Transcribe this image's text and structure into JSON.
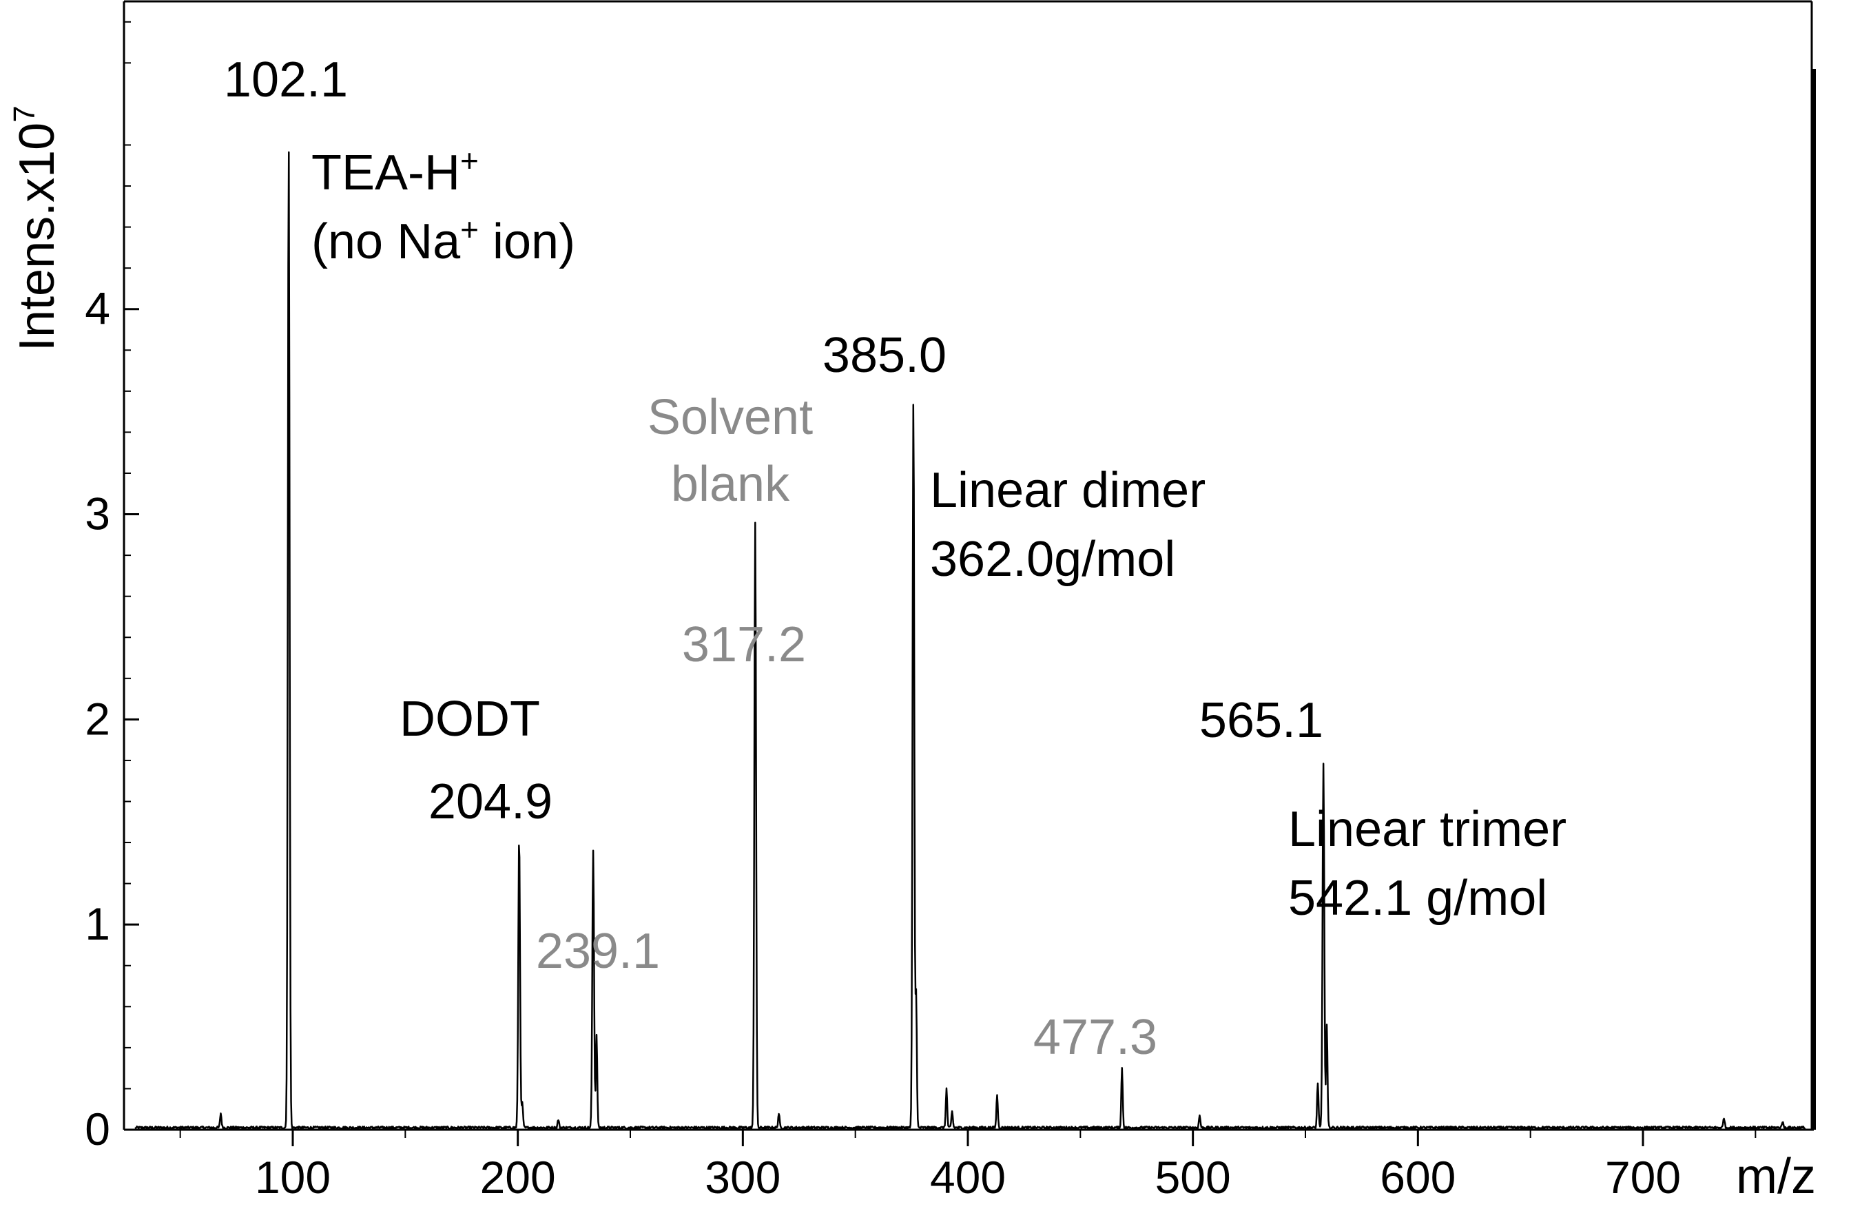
{
  "chart_data": {
    "type": "line",
    "title": "",
    "xlabel": "m/z",
    "ylabel": "Intens.x10",
    "ylabel_exponent": "7",
    "xlim": [
      25,
      775
    ],
    "ylim": [
      0,
      5.5
    ],
    "x_ticks": [
      "100",
      "200",
      "300",
      "400",
      "500",
      "600",
      "700"
    ],
    "y_ticks": [
      "0",
      "1",
      "2",
      "3",
      "4"
    ],
    "grid": false,
    "colors": {
      "series": "#000000",
      "annotation": "#000000",
      "annotation_muted": "#8a8a8a"
    },
    "peaks": [
      {
        "mz": 68,
        "intensity": 0.07
      },
      {
        "mz": 98.2,
        "intensity": 4.8
      },
      {
        "mz": 200.6,
        "intensity": 1.42
      },
      {
        "mz": 202,
        "intensity": 0.12
      },
      {
        "mz": 218,
        "intensity": 0.04
      },
      {
        "mz": 233.5,
        "intensity": 1.35
      },
      {
        "mz": 235,
        "intensity": 0.45
      },
      {
        "mz": 305.5,
        "intensity": 2.95
      },
      {
        "mz": 316,
        "intensity": 0.07
      },
      {
        "mz": 375.8,
        "intensity": 3.55
      },
      {
        "mz": 377,
        "intensity": 0.65
      },
      {
        "mz": 390.5,
        "intensity": 0.19
      },
      {
        "mz": 393,
        "intensity": 0.08
      },
      {
        "mz": 413,
        "intensity": 0.16
      },
      {
        "mz": 468.5,
        "intensity": 0.29
      },
      {
        "mz": 503,
        "intensity": 0.06
      },
      {
        "mz": 555.5,
        "intensity": 0.22
      },
      {
        "mz": 558,
        "intensity": 1.78
      },
      {
        "mz": 559.5,
        "intensity": 0.5
      },
      {
        "mz": 736,
        "intensity": 0.05
      },
      {
        "mz": 762,
        "intensity": 0.03
      }
    ],
    "annotations": [
      {
        "mz": 102.1,
        "label": "102.1",
        "muted": false
      },
      {
        "mz": 204.9,
        "label": "204.9",
        "muted": false
      },
      {
        "mz": 239.1,
        "label": "239.1",
        "muted": true
      },
      {
        "mz": 317.2,
        "label": "317.2",
        "muted": true
      },
      {
        "mz": 385.0,
        "label": "385.0",
        "muted": false
      },
      {
        "mz": 477.3,
        "label": "477.3",
        "muted": true
      },
      {
        "mz": 565.1,
        "label": "565.1",
        "muted": false
      }
    ],
    "notes": {
      "tea_line1": "TEA-H",
      "tea_line2_pre": "(no Na",
      "tea_line2_post": " ion)",
      "superscript_plus": "+",
      "dodt": "DODT",
      "solvent_line1": "Solvent",
      "solvent_line2": "blank",
      "dimer_line1": "Linear dimer",
      "dimer_line2": "362.0g/mol",
      "trimer_line1": "Linear trimer",
      "trimer_line2": "542.1 g/mol"
    }
  }
}
